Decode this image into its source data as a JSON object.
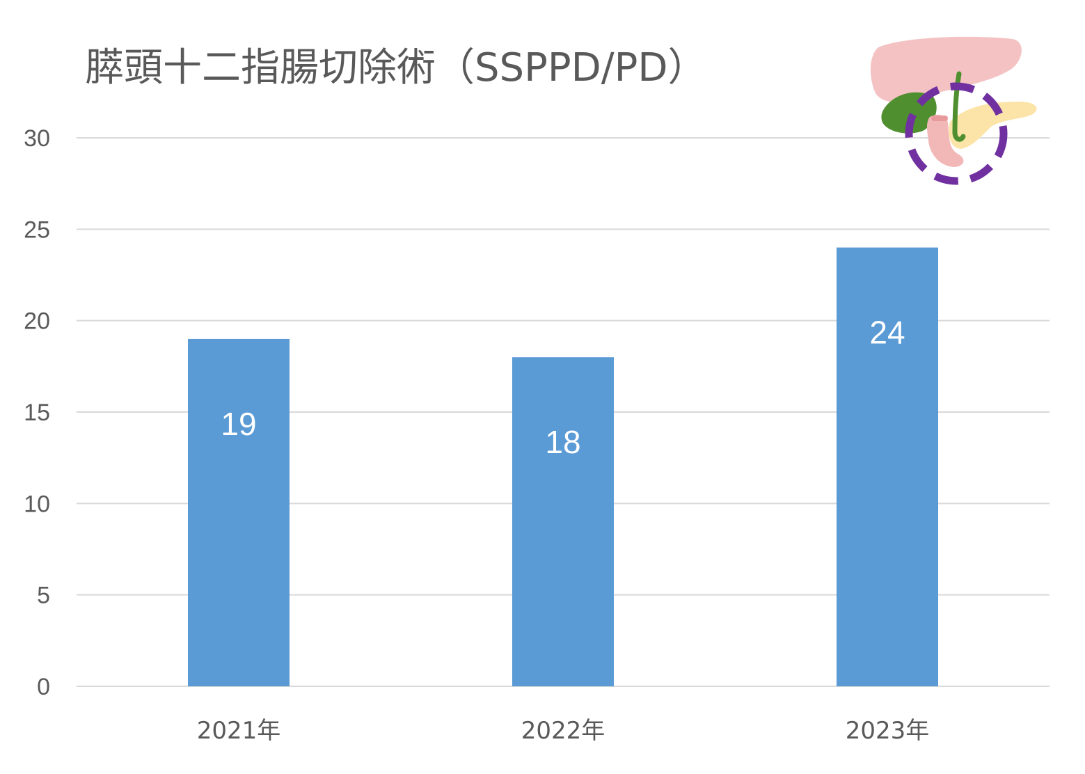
{
  "chart_data": {
    "type": "bar",
    "title": "膵頭十二指腸切除術（SSPPD/PD）",
    "categories": [
      "2021年",
      "2022年",
      "2023年"
    ],
    "values": [
      19,
      18,
      24
    ],
    "ylim": [
      0,
      30
    ],
    "yticks": [
      "0",
      "5",
      "10",
      "15",
      "20",
      "25",
      "30"
    ],
    "grid": true,
    "data_labels": true,
    "bar_color": "#5b9bd5",
    "label_color": "#ffffff",
    "illustration": "pancreas-duodenum-icon",
    "illustration_colors": {
      "liver": "#f4c2c2",
      "gallbladder": "#4f8f2f",
      "pancreas": "#fce4a8",
      "duodenum": "#f2b8b8",
      "highlight_circle": "#7030a0"
    }
  }
}
